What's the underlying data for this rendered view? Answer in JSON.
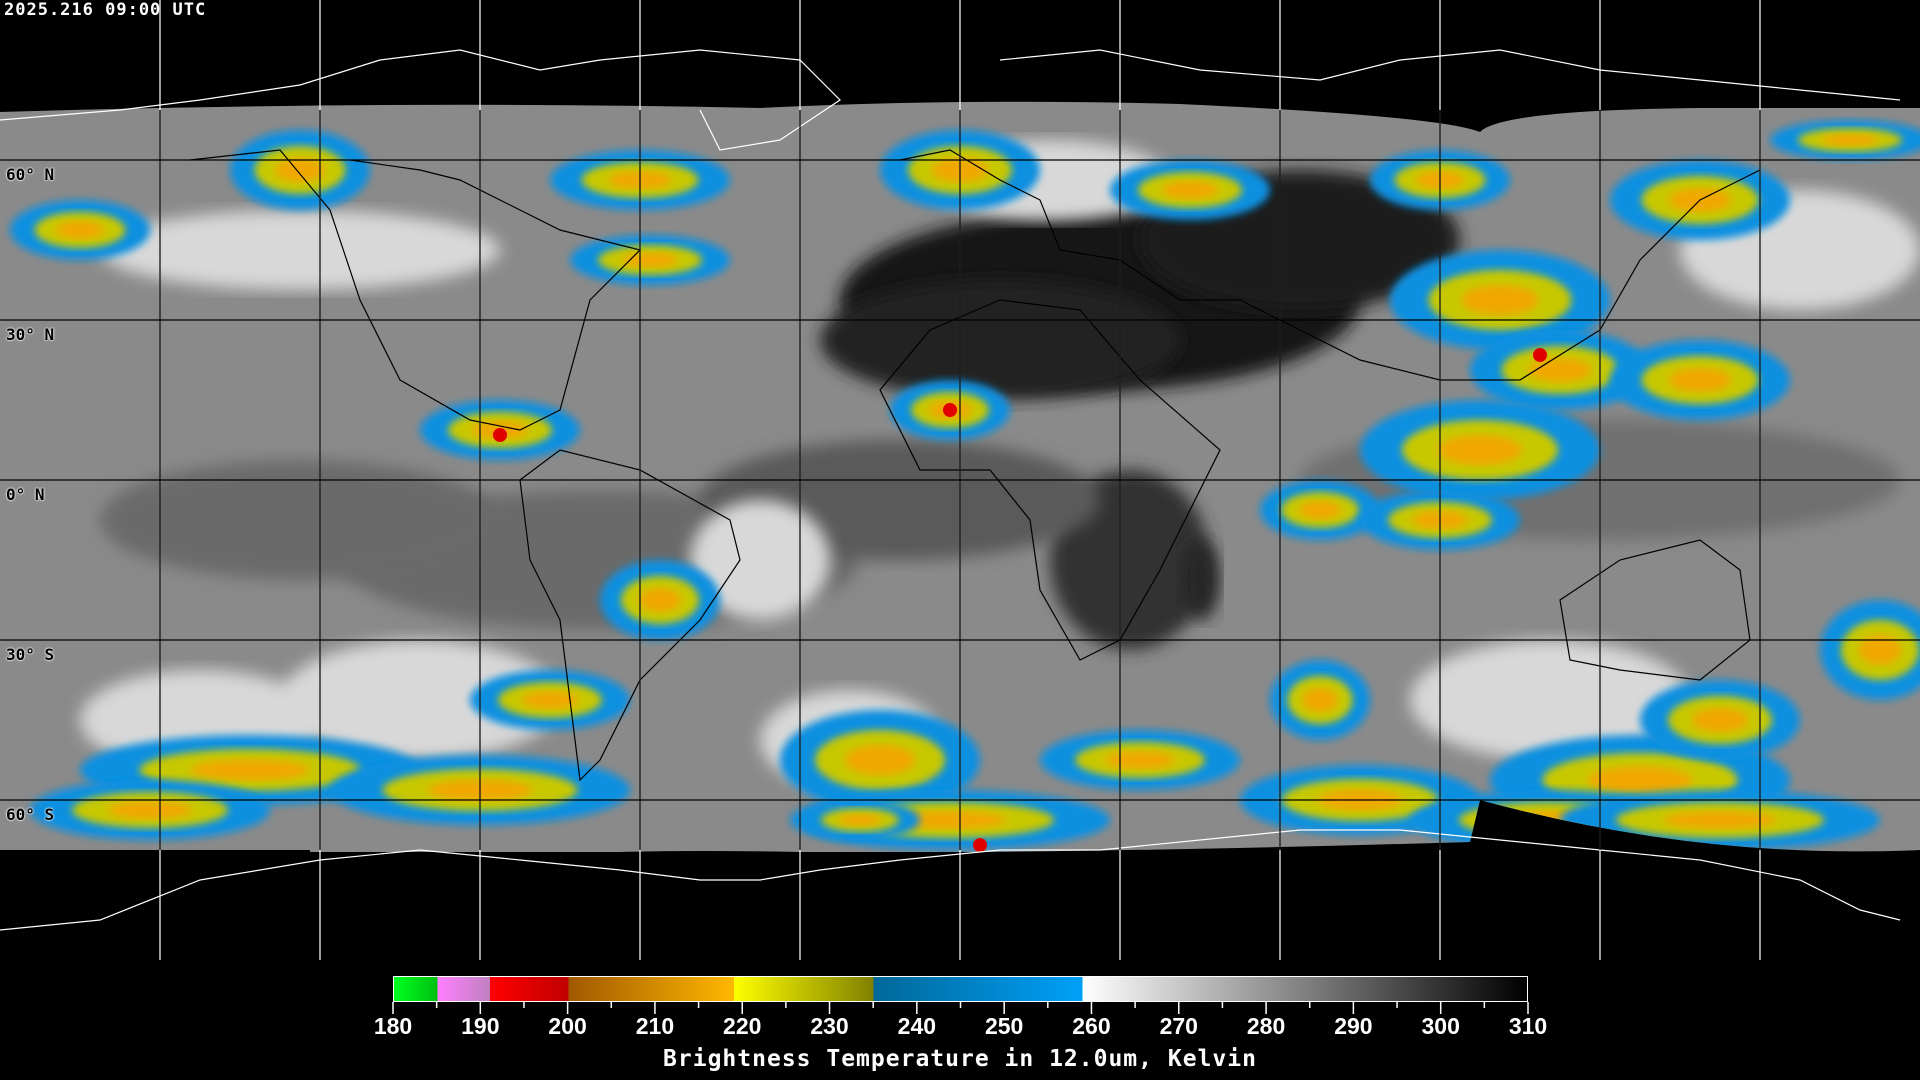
{
  "timestamp": "2025.216 09:00 UTC",
  "map": {
    "projection": "equirectangular global",
    "lat_labels": [
      "60° N",
      "30° N",
      "0° N",
      "30° S",
      "60° S"
    ],
    "grid_spacing_degrees": 30,
    "colors": {
      "background": "#000000",
      "gridlines": "#ffffff",
      "coastlines": "#000000"
    }
  },
  "colorbar": {
    "min": 180,
    "max": 310,
    "tick_labels": [
      "180",
      "190",
      "200",
      "210",
      "220",
      "230",
      "240",
      "250",
      "260",
      "270",
      "280",
      "290",
      "300",
      "310"
    ],
    "title": "Brightness Temperature in 12.0um, Kelvin",
    "segments": [
      {
        "from": 180,
        "to": 185,
        "colors": [
          "#00ff20",
          "#00c010"
        ]
      },
      {
        "from": 185,
        "to": 191,
        "colors": [
          "#ff80ff",
          "#c080c0"
        ]
      },
      {
        "from": 191,
        "to": 200,
        "colors": [
          "#ff0000",
          "#c00000"
        ]
      },
      {
        "from": 200,
        "to": 219,
        "colors": [
          "#a05800",
          "#ffb800"
        ]
      },
      {
        "from": 219,
        "to": 235,
        "colors": [
          "#ffff00",
          "#808000"
        ]
      },
      {
        "from": 235,
        "to": 259,
        "colors": [
          "#006898",
          "#00a0f8"
        ]
      },
      {
        "from": 259,
        "to": 310,
        "colors": [
          "#ffffff",
          "#000000"
        ]
      }
    ]
  }
}
